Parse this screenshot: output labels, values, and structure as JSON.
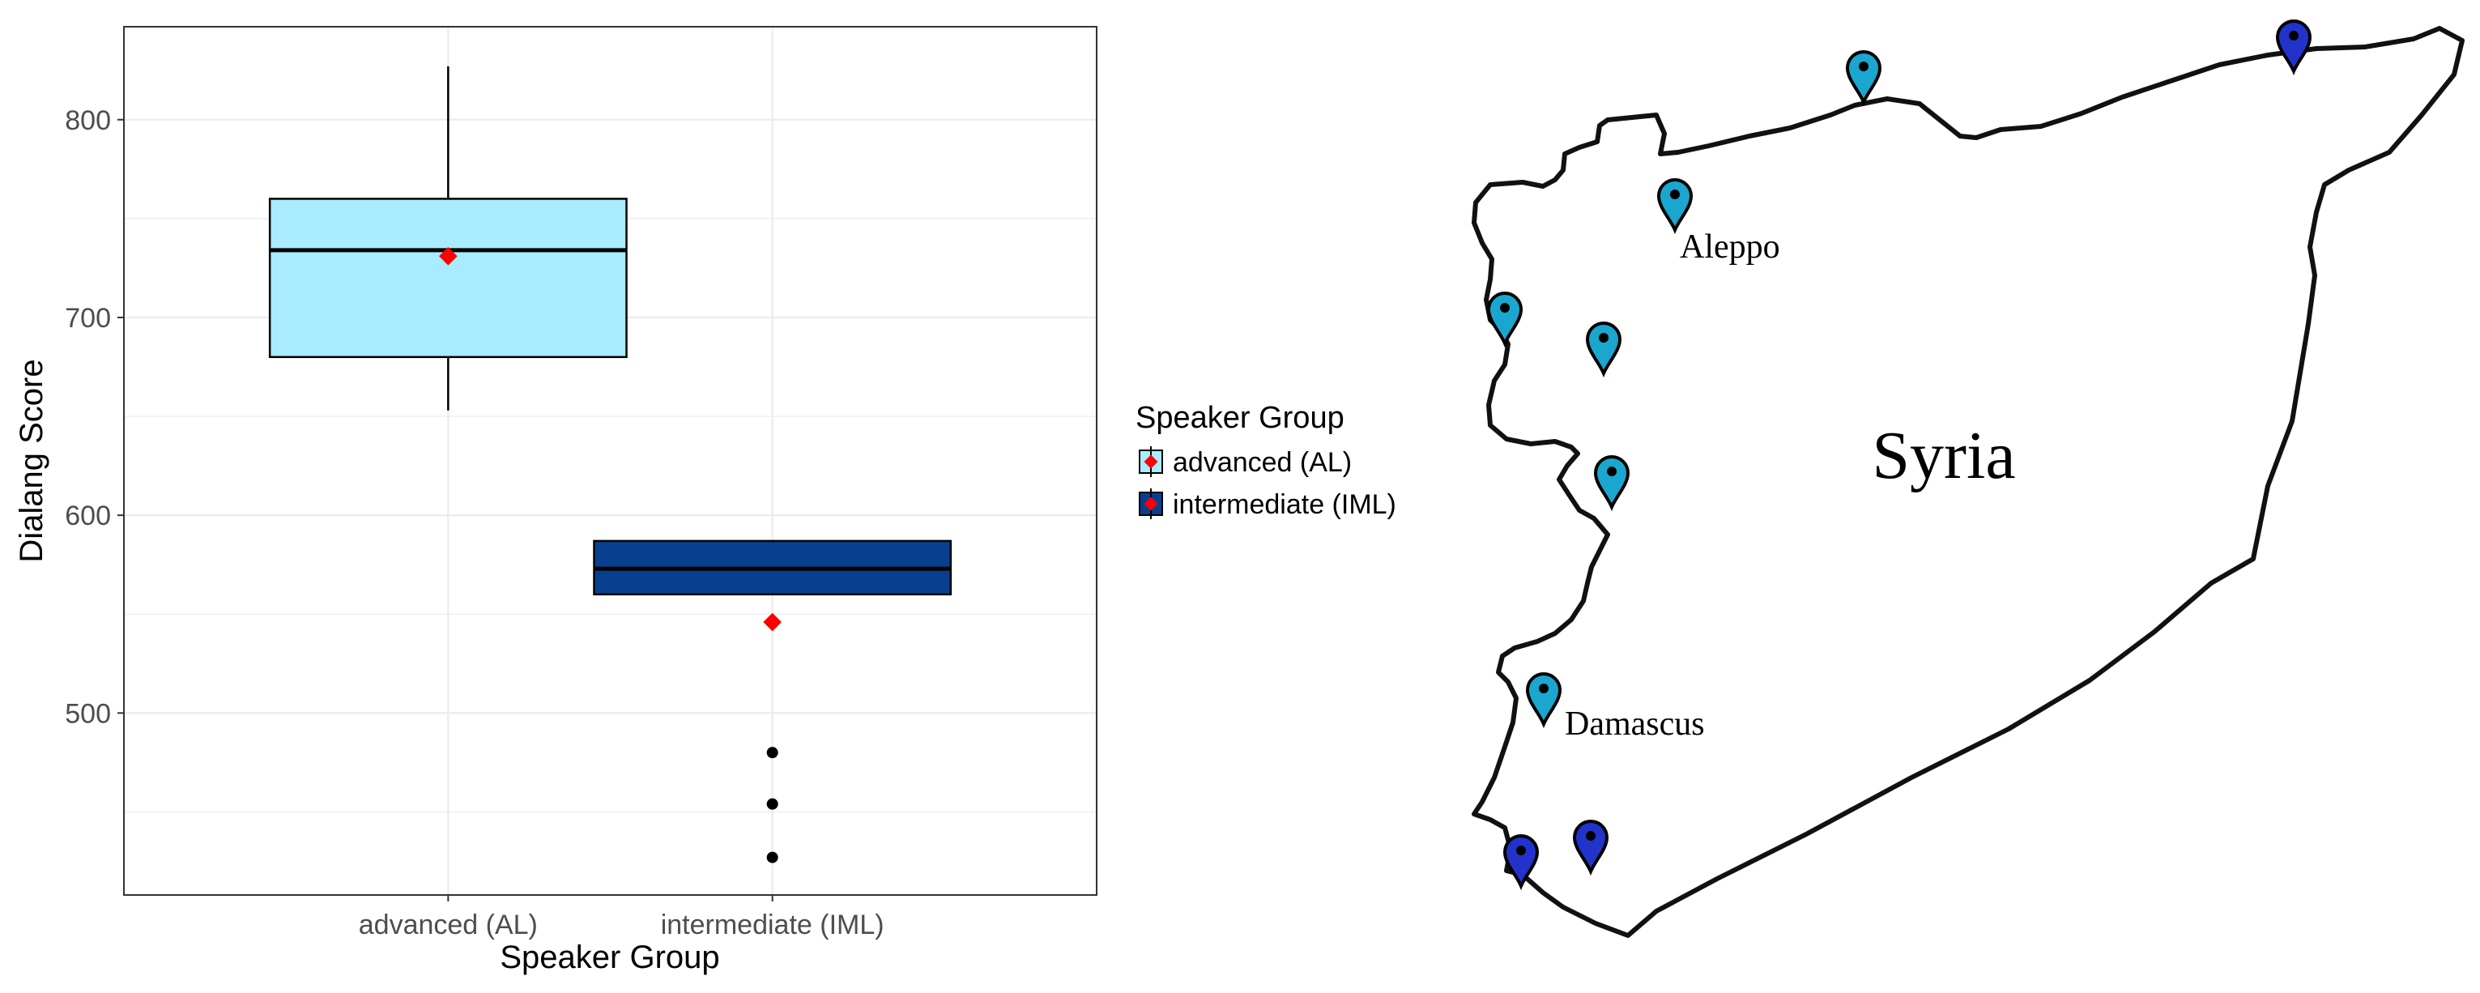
{
  "chart_data": {
    "type": "box",
    "xlabel": "Speaker Group",
    "ylabel": "Dialang Score",
    "ylim": [
      408,
      847
    ],
    "yticks": [
      500,
      600,
      700,
      800
    ],
    "categories": [
      "advanced (AL)",
      "intermediate (IML)"
    ],
    "series": [
      {
        "name": "advanced (AL)",
        "color": "#a9ecff",
        "whisker_low": 653,
        "q1": 680,
        "median": 734,
        "q3": 760,
        "whisker_high": 827,
        "mean": 731,
        "outliers": []
      },
      {
        "name": "intermediate (IML)",
        "color": "#08408f",
        "whisker_low": 560,
        "q1": 560,
        "median": 573,
        "q3": 587,
        "whisker_high": 587,
        "mean": 546,
        "outliers": [
          480,
          454,
          427
        ]
      }
    ],
    "grid": true,
    "legend": {
      "title": "Speaker Group",
      "position": "right",
      "entries": [
        "advanced (AL)",
        "intermediate (IML)"
      ]
    },
    "mean_marker_color": "#ff0000"
  },
  "map": {
    "country_label": "Syria",
    "city_labels": {
      "aleppo": "Aleppo",
      "damascus": "Damascus"
    },
    "outline_color": "#111111",
    "pin_colors": {
      "advanced": "#1aa6cf",
      "intermediate": "#2233cc"
    },
    "pins": [
      {
        "group": "advanced",
        "name": "pin-north-border"
      },
      {
        "group": "intermediate",
        "name": "pin-northeast"
      },
      {
        "group": "advanced",
        "name": "pin-aleppo"
      },
      {
        "group": "advanced",
        "name": "pin-coast"
      },
      {
        "group": "advanced",
        "name": "pin-idlib"
      },
      {
        "group": "advanced",
        "name": "pin-homs"
      },
      {
        "group": "advanced",
        "name": "pin-damascus"
      },
      {
        "group": "intermediate",
        "name": "pin-south-west"
      },
      {
        "group": "intermediate",
        "name": "pin-south"
      }
    ]
  }
}
